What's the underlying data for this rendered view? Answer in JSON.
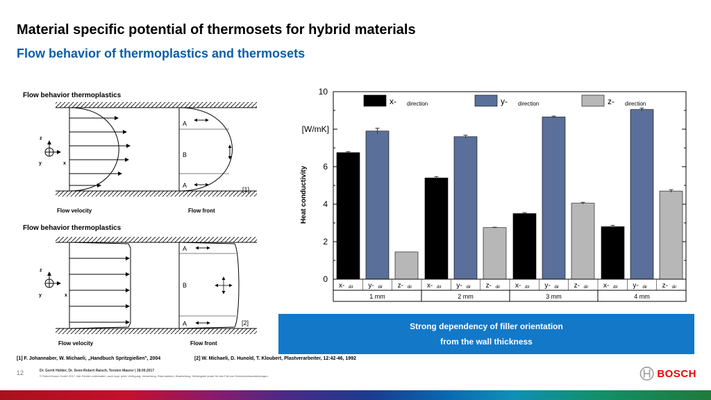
{
  "header": {
    "title": "Material specific potential of thermosets for hybrid materials",
    "subtitle": "Flow behavior of thermoplastics and thermosets"
  },
  "diagram_top": {
    "heading": "Flow behavior thermoplastics",
    "axis_z": "z",
    "axis_y": "y",
    "axis_x": "x",
    "zone_a1": "A",
    "zone_b": "B",
    "zone_a2": "A",
    "ref": "[1]",
    "label_velocity": "Flow velocity",
    "label_front": "Flow front"
  },
  "diagram_bottom": {
    "heading": "Flow behavior thermoplastics",
    "axis_z": "z",
    "axis_y": "y",
    "axis_x": "x",
    "zone_a1": "A",
    "zone_b": "B",
    "zone_a2": "A",
    "ref": "[2]",
    "label_velocity": "Flow velocity",
    "label_front": "Flow front"
  },
  "chart_data": {
    "type": "bar",
    "ylabel": "Heat conductivity",
    "unit_label": "[W/mK]",
    "ylim": [
      0,
      10
    ],
    "yticks": [
      0,
      2,
      4,
      6,
      10
    ],
    "legend": [
      {
        "main": "x-",
        "sub": "direction",
        "color": "#000000"
      },
      {
        "main": "y-",
        "sub": "direction",
        "color": "#5a6f99"
      },
      {
        "main": "z-",
        "sub": "direction",
        "color": "#b7b7b7"
      }
    ],
    "groups": [
      "1 mm",
      "2 mm",
      "3 mm",
      "4 mm"
    ],
    "category_main": [
      "x-",
      "y-",
      "z-"
    ],
    "category_sub": "dir",
    "values": [
      [
        6.75,
        7.9,
        1.45
      ],
      [
        5.4,
        7.6,
        2.75
      ],
      [
        3.5,
        8.65,
        4.05
      ],
      [
        2.8,
        9.05,
        4.7
      ]
    ],
    "errors": [
      [
        0.05,
        0.15,
        0.0
      ],
      [
        0.07,
        0.08,
        0.02
      ],
      [
        0.05,
        0.05,
        0.05
      ],
      [
        0.07,
        0.07,
        0.07
      ]
    ]
  },
  "callout": {
    "line1": "Strong dependency of filler orientation",
    "line2": "from the wall thickness"
  },
  "footer": {
    "ref1": "[1] F. Johannaber, W. Michaeli, „Handbuch Spritzgießen\", 2004",
    "ref2": "[2] W. Michaeli, D. Hunold, T. Kloubert, Plastverarbeiter, 12:42-46, 1992",
    "page": "12",
    "authors": "Dr. Gerrit Hülder, Dr. Sven-Robert Raisch, Torsten Maurer | 28.09.2017",
    "copyright": "© Robert Bosch GmbH 2017. Alle Rechte vorbehalten, auch bzgl. jeder Verfügung, Verwertung, Reproduktion, Bearbeitung, Weitergabe sowie für den Fall von Schutzrechtsanmeldungen.",
    "brand": "BOSCH"
  }
}
